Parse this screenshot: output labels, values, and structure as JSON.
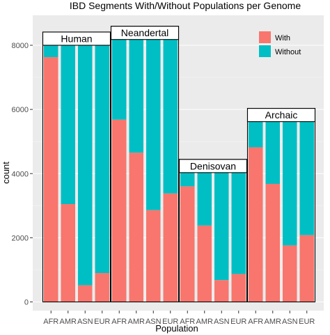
{
  "chart_data": {
    "type": "bar",
    "stacked": true,
    "title": "IBD Segments With/Without Populations per Genome",
    "xlabel": "Population",
    "ylabel": "count",
    "ylim": [
      0,
      9000
    ],
    "yticks": [
      0,
      2000,
      4000,
      6000,
      8000
    ],
    "grid": true,
    "legend_position": "top-right",
    "colors": {
      "With": "#f8766d",
      "Without": "#00bfc4",
      "panel": "#ebebeb",
      "grid": "#ffffff"
    },
    "groups": [
      {
        "name": "Human",
        "categories": [
          "AFR",
          "AMR",
          "ASN",
          "EUR"
        ],
        "totals": [
          8000,
          8000,
          8000,
          8000
        ],
        "with": [
          7630,
          3050,
          520,
          900
        ]
      },
      {
        "name": "Neandertal",
        "categories": [
          "AFR",
          "AMR",
          "ASN",
          "EUR"
        ],
        "totals": [
          8180,
          8180,
          8180,
          8180
        ],
        "with": [
          5680,
          4650,
          2860,
          3380
        ]
      },
      {
        "name": "Denisovan",
        "categories": [
          "AFR",
          "AMR",
          "ASN",
          "EUR"
        ],
        "totals": [
          4030,
          4030,
          4030,
          4030
        ],
        "with": [
          3600,
          2380,
          680,
          870
        ]
      },
      {
        "name": "Archaic",
        "categories": [
          "AFR",
          "AMR",
          "ASN",
          "EUR"
        ],
        "totals": [
          5620,
          5620,
          5620,
          5620
        ],
        "with": [
          4820,
          3680,
          1760,
          2080
        ]
      }
    ],
    "legend": [
      {
        "label": "With",
        "color": "#f8766d"
      },
      {
        "label": "Without",
        "color": "#00bfc4"
      }
    ]
  }
}
